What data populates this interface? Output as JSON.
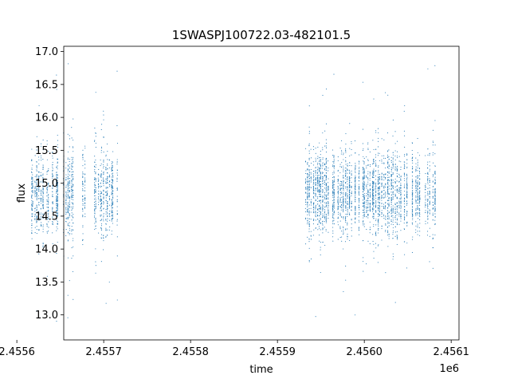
{
  "chart_data": {
    "type": "scatter",
    "title": "1SWASPJ100722.03-482101.5",
    "xlabel": "time",
    "ylabel": "flux",
    "x_offset_label": "1e6",
    "xlim": [
      2455654.0,
      2456109.0
    ],
    "ylim": [
      12.62,
      17.08
    ],
    "x_tick_values": [
      2455600,
      2455700,
      2455800,
      2455900,
      2456000,
      2456100
    ],
    "x_tick_labels": [
      "2.4556",
      "2.4557",
      "2.4558",
      "2.4559",
      "2.4560",
      "2.4561"
    ],
    "y_tick_values": [
      13.0,
      13.5,
      14.0,
      14.5,
      15.0,
      15.5,
      16.0,
      16.5,
      17.0
    ],
    "y_tick_labels": [
      "13.0",
      "13.5",
      "14.0",
      "14.5",
      "15.0",
      "15.5",
      "16.0",
      "16.5",
      "17.0"
    ],
    "grid": false,
    "marker_color": "#1f77b4",
    "observing_seasons": [
      {
        "time_range": [
          2455616,
          2455717
        ],
        "flux_center": 14.85,
        "flux_spread": 0.32
      },
      {
        "time_range": [
          2455932,
          2456083
        ],
        "flux_center": 14.85,
        "flux_spread": 0.3
      }
    ],
    "outlier_flux_range": [
      12.8,
      16.85
    ]
  }
}
